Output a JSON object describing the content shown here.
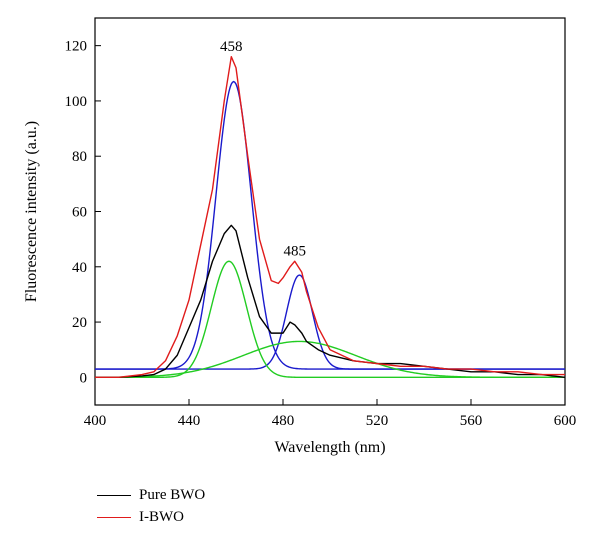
{
  "chart_data": {
    "type": "line",
    "xlabel": "Wavelength (nm)",
    "ylabel": "Fluorescence intensity (a.u.)",
    "xlim": [
      400,
      600
    ],
    "ylim": [
      -10,
      130
    ],
    "xticks": [
      400,
      440,
      480,
      520,
      560,
      600
    ],
    "yticks": [
      0,
      20,
      40,
      60,
      80,
      100,
      120
    ],
    "grid": false,
    "legend_position": "bottom-left",
    "annotations": [
      {
        "text": "458",
        "x": 458,
        "y": 118
      },
      {
        "text": "485",
        "x": 485,
        "y": 44
      }
    ],
    "series": [
      {
        "name": "Pure BWO",
        "color": "#000000",
        "x": [
          400,
          410,
          420,
          425,
          430,
          435,
          440,
          445,
          450,
          455,
          458,
          460,
          465,
          470,
          475,
          480,
          483,
          485,
          488,
          490,
          495,
          500,
          510,
          520,
          530,
          540,
          550,
          560,
          570,
          580,
          590,
          600
        ],
        "y": [
          0,
          0,
          0.5,
          1,
          3,
          8,
          18,
          28,
          42,
          52,
          55,
          53,
          36,
          22,
          16,
          16,
          20,
          19,
          16,
          13,
          10,
          8,
          6,
          5,
          5,
          4,
          3,
          2,
          2,
          1,
          1,
          0
        ]
      },
      {
        "name": "I-BWO",
        "color": "#e01b1b",
        "x": [
          400,
          410,
          420,
          425,
          430,
          435,
          440,
          445,
          450,
          455,
          458,
          460,
          465,
          470,
          475,
          478,
          480,
          483,
          485,
          488,
          490,
          495,
          500,
          510,
          520,
          530,
          540,
          550,
          560,
          570,
          580,
          590,
          600
        ],
        "y": [
          0,
          0,
          1,
          2,
          6,
          15,
          28,
          48,
          68,
          100,
          116,
          112,
          80,
          50,
          35,
          34,
          36,
          40,
          42,
          38,
          31,
          18,
          10,
          6,
          5,
          4,
          4,
          3,
          3,
          2,
          2,
          1,
          1
        ]
      }
    ],
    "fit_components": [
      {
        "color": "#1a1acc",
        "baseline": 3,
        "amplitude": 104,
        "center": 459,
        "sigma": 7.5
      },
      {
        "color": "#1a1acc",
        "baseline": 3,
        "amplitude": 34,
        "center": 487,
        "sigma": 5.5
      },
      {
        "color": "#22cc22",
        "baseline": 0,
        "amplitude": 42,
        "center": 457,
        "sigma": 7.5
      },
      {
        "color": "#22cc22",
        "baseline": 0,
        "amplitude": 13,
        "center": 487,
        "sigma": 24
      }
    ]
  }
}
